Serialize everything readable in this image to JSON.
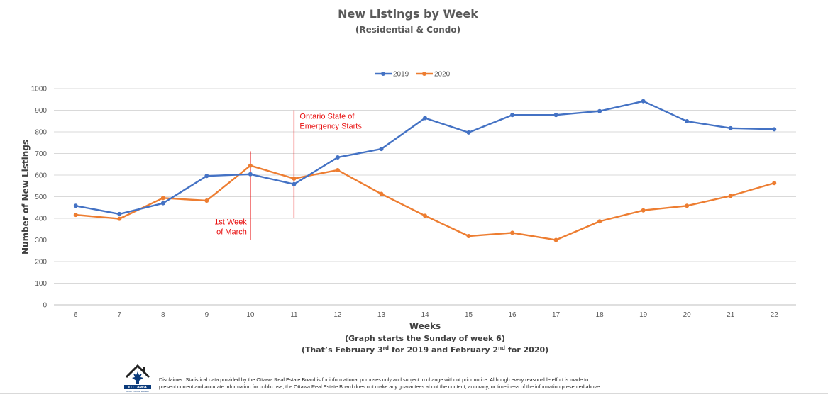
{
  "chart_data": {
    "type": "line",
    "title": "New Listings by Week",
    "subtitle": "(Residential & Condo)",
    "xlabel": "Weeks",
    "xlabel_note_1": "(Graph starts the Sunday of week 6)",
    "xlabel_note_2_parts": [
      "(That’s February 3",
      "rd",
      " for 2019 and February 2",
      "nd",
      " for 2020)"
    ],
    "ylabel": "Number of New Listings",
    "x": [
      6,
      7,
      8,
      9,
      10,
      11,
      12,
      13,
      14,
      15,
      16,
      17,
      18,
      19,
      20,
      21,
      22
    ],
    "ylim": [
      0,
      1000
    ],
    "yticks": [
      0,
      100,
      200,
      300,
      400,
      500,
      600,
      700,
      800,
      900,
      1000
    ],
    "grid": true,
    "legend_position": "top-center",
    "series": [
      {
        "name": "2019",
        "color": "#4472c4",
        "values": [
          458,
          420,
          470,
          596,
          604,
          558,
          682,
          721,
          864,
          797,
          878,
          878,
          896,
          942,
          849,
          817,
          812
        ]
      },
      {
        "name": "2020",
        "color": "#ed7d31",
        "values": [
          416,
          398,
          494,
          482,
          644,
          584,
          623,
          513,
          412,
          318,
          333,
          300,
          386,
          437,
          458,
          504,
          563
        ]
      }
    ],
    "annotations": [
      {
        "lines": [
          "1st Week",
          "of March"
        ],
        "x": 10,
        "y_from": 300,
        "y_to": 710,
        "color": "#e81010",
        "text_side": "left"
      },
      {
        "lines": [
          "Ontario State of",
          "Emergency Starts"
        ],
        "x": 11,
        "y_from": 400,
        "y_to": 900,
        "color": "#e81010",
        "text_side": "right"
      }
    ]
  },
  "footer": {
    "logo_text": "OTTAWA",
    "logo_subtext": "REAL ESTATE BOARD",
    "disclaimer_line1": "Disclaimer: Statistical data provided by the Ottawa Real Estate Board is for informational purposes only and subject to change without prior notice. Although every reasonable effort is made to",
    "disclaimer_line2": "present current and accurate information for public use, the Ottawa Real Estate Board does not make any guarantees about the content, accuracy, or timeliness of the information presented above."
  }
}
